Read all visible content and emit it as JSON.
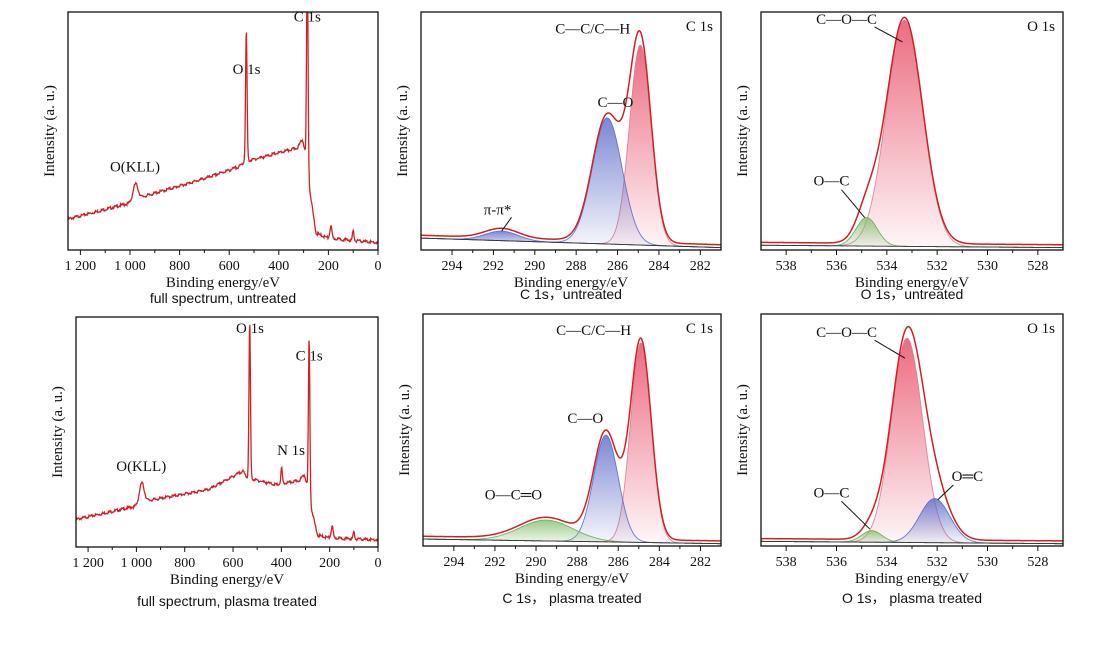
{
  "figure": {
    "colors": {
      "frame": "#111111",
      "envelope": "#d21f26",
      "red_fill": "#e8526a",
      "blue_fill": "#5a6ac8",
      "green_fill": "#7fbf6a",
      "baseline": "#333333"
    }
  },
  "chart_data": [
    {
      "id": "survey-untreated",
      "type": "line",
      "caption": "full spectrum, untreated",
      "xlabel": "Binding energy/eV",
      "ylabel": "Intensity (a. u.)",
      "xlim": [
        1250,
        0
      ],
      "reversed": true,
      "xticks": [
        1200,
        1000,
        800,
        600,
        400,
        200,
        0
      ],
      "xtick_labels": [
        "1 200",
        "1 000",
        "800",
        "600",
        "400",
        "200",
        "0"
      ],
      "ylim": [
        0,
        100
      ],
      "background": [
        [
          1250,
          13
        ],
        [
          990,
          20
        ],
        [
          960,
          22
        ],
        [
          700,
          30
        ],
        [
          560,
          35
        ],
        [
          540,
          37
        ],
        [
          320,
          43
        ],
        [
          296,
          40
        ],
        [
          250,
          7
        ],
        [
          200,
          5
        ],
        [
          0,
          3
        ]
      ],
      "peaks": [
        {
          "center": 978,
          "height": 7,
          "width": 10
        },
        {
          "center": 531,
          "height": 55,
          "width": 3
        },
        {
          "center": 285,
          "height": 90,
          "width": 3
        },
        {
          "center": 305,
          "height": 5,
          "width": 8
        },
        {
          "center": 190,
          "height": 5,
          "width": 4
        },
        {
          "center": 100,
          "height": 4,
          "width": 3
        }
      ],
      "annotations": [
        {
          "text": "O(KLL)",
          "x": 980,
          "y": 33
        },
        {
          "text": "O 1s",
          "x": 530,
          "y": 74
        },
        {
          "text": "C 1s",
          "x": 285,
          "y": 96
        }
      ]
    },
    {
      "id": "c1s-untreated",
      "type": "area",
      "caption": "C 1s，untreated",
      "corner_label": "C 1s",
      "xlabel": "Binding energy/eV",
      "ylabel": "Intensity (a. u.)",
      "xlim": [
        295.5,
        281
      ],
      "reversed": true,
      "xticks": [
        294,
        292,
        290,
        288,
        286,
        284,
        282
      ],
      "xtick_labels": [
        "294",
        "292",
        "290",
        "288",
        "286",
        "284",
        "282"
      ],
      "ylim": [
        0,
        100
      ],
      "baseline": [
        [
          295.5,
          5
        ],
        [
          281,
          1
        ]
      ],
      "components": [
        {
          "label": "C—C/C—H",
          "center": 284.9,
          "height": 84,
          "width": 0.52,
          "color": "red"
        },
        {
          "label": "C—O",
          "center": 286.5,
          "height": 53,
          "width": 0.72,
          "color": "blue"
        },
        {
          "label": "π-π*",
          "center": 291.6,
          "height": 4,
          "width": 0.8,
          "color": "blue"
        }
      ],
      "annotations": [
        {
          "text": "C—C/C—H",
          "x": 287.2,
          "y": 91
        },
        {
          "text": "C—O",
          "x": 286.1,
          "y": 60
        },
        {
          "text": "π-π*",
          "x": 291.8,
          "y": 15
        }
      ]
    },
    {
      "id": "o1s-untreated",
      "type": "area",
      "caption": "O 1s，untreated",
      "corner_label": "O 1s",
      "xlabel": "Binding energy/eV",
      "ylabel": "Intensity (a. u.)",
      "xlim": [
        539,
        527
      ],
      "reversed": true,
      "xticks": [
        538,
        536,
        534,
        532,
        530,
        528
      ],
      "xtick_labels": [
        "538",
        "536",
        "534",
        "532",
        "530",
        "528"
      ],
      "ylim": [
        0,
        100
      ],
      "baseline": [
        [
          539,
          2
        ],
        [
          527,
          1
        ]
      ],
      "components": [
        {
          "label": "C—O—C",
          "center": 533.3,
          "height": 95,
          "width": 0.72,
          "color": "red"
        },
        {
          "label": "O—C",
          "center": 534.8,
          "height": 12,
          "width": 0.42,
          "color": "green"
        }
      ],
      "annotations": [
        {
          "text": "C—O—C",
          "x": 535.6,
          "y": 95
        },
        {
          "text": "O—C",
          "x": 536.2,
          "y": 27
        }
      ]
    },
    {
      "id": "survey-plasma",
      "type": "line",
      "caption": "full spectrum, plasma treated",
      "xlabel": "Binding energy/eV",
      "ylabel": "Intensity (a. u.)",
      "xlim": [
        1250,
        0
      ],
      "reversed": true,
      "xticks": [
        1200,
        1000,
        800,
        600,
        400,
        200,
        0
      ],
      "xtick_labels": [
        "1 200",
        "1 000",
        "800",
        "600",
        "400",
        "200",
        "0"
      ],
      "ylim": [
        0,
        100
      ],
      "background": [
        [
          1250,
          12
        ],
        [
          990,
          18
        ],
        [
          960,
          20
        ],
        [
          700,
          25
        ],
        [
          560,
          33
        ],
        [
          540,
          30
        ],
        [
          420,
          27
        ],
        [
          320,
          29
        ],
        [
          296,
          26
        ],
        [
          250,
          5
        ],
        [
          200,
          4
        ],
        [
          0,
          3
        ]
      ],
      "peaks": [
        {
          "center": 978,
          "height": 9,
          "width": 10
        },
        {
          "center": 531,
          "height": 68,
          "width": 3
        },
        {
          "center": 399,
          "height": 7,
          "width": 3
        },
        {
          "center": 285,
          "height": 70,
          "width": 3
        },
        {
          "center": 305,
          "height": 4,
          "width": 8
        },
        {
          "center": 190,
          "height": 5,
          "width": 4
        },
        {
          "center": 100,
          "height": 3,
          "width": 3
        }
      ],
      "annotations": [
        {
          "text": "O(KLL)",
          "x": 980,
          "y": 33
        },
        {
          "text": "N 1s",
          "x": 360,
          "y": 40
        },
        {
          "text": "O 1s",
          "x": 530,
          "y": 93
        },
        {
          "text": "C 1s",
          "x": 285,
          "y": 81
        }
      ]
    },
    {
      "id": "c1s-plasma",
      "type": "area",
      "caption": "C 1s， plasma treated",
      "corner_label": "C 1s",
      "xlabel": "Binding energy/eV",
      "ylabel": "Intensity (a. u.)",
      "xlim": [
        295.5,
        281
      ],
      "reversed": true,
      "xticks": [
        294,
        292,
        290,
        288,
        286,
        284,
        282
      ],
      "xtick_labels": [
        "294",
        "292",
        "290",
        "288",
        "286",
        "284",
        "282"
      ],
      "ylim": [
        0,
        100
      ],
      "baseline": [
        [
          295.5,
          3
        ],
        [
          281,
          1
        ]
      ],
      "components": [
        {
          "label": "C—C/C—H",
          "center": 284.9,
          "height": 86,
          "width": 0.5,
          "color": "red"
        },
        {
          "label": "C—O",
          "center": 286.6,
          "height": 46,
          "width": 0.6,
          "color": "blue"
        },
        {
          "label": "O—C═O",
          "center": 289.5,
          "height": 9,
          "width": 1.3,
          "color": "green"
        }
      ],
      "annotations": [
        {
          "text": "C—C/C—H",
          "x": 287.2,
          "y": 91
        },
        {
          "text": "C—O",
          "x": 287.6,
          "y": 53
        },
        {
          "text": "O—C═O",
          "x": 291.1,
          "y": 20
        }
      ]
    },
    {
      "id": "o1s-plasma",
      "type": "area",
      "caption": "O 1s， plasma treated",
      "corner_label": "O 1s",
      "xlabel": "Binding energy/eV",
      "ylabel": "Intensity (a. u.)",
      "xlim": [
        539,
        527
      ],
      "reversed": true,
      "xticks": [
        538,
        536,
        534,
        532,
        530,
        528
      ],
      "xtick_labels": [
        "538",
        "536",
        "534",
        "532",
        "530",
        "528"
      ],
      "ylim": [
        0,
        100
      ],
      "baseline": [
        [
          539,
          2
        ],
        [
          527,
          1
        ]
      ],
      "components": [
        {
          "label": "C—O—C",
          "center": 533.2,
          "height": 88,
          "width": 0.62,
          "color": "red"
        },
        {
          "label": "O═C",
          "center": 532.1,
          "height": 19,
          "width": 0.6,
          "color": "blue"
        },
        {
          "label": "O—C",
          "center": 534.6,
          "height": 5,
          "width": 0.4,
          "color": "green"
        }
      ],
      "annotations": [
        {
          "text": "C—O—C",
          "x": 535.6,
          "y": 90
        },
        {
          "text": "O—C",
          "x": 536.2,
          "y": 21
        },
        {
          "text": "O═C",
          "x": 530.8,
          "y": 28
        }
      ]
    }
  ]
}
